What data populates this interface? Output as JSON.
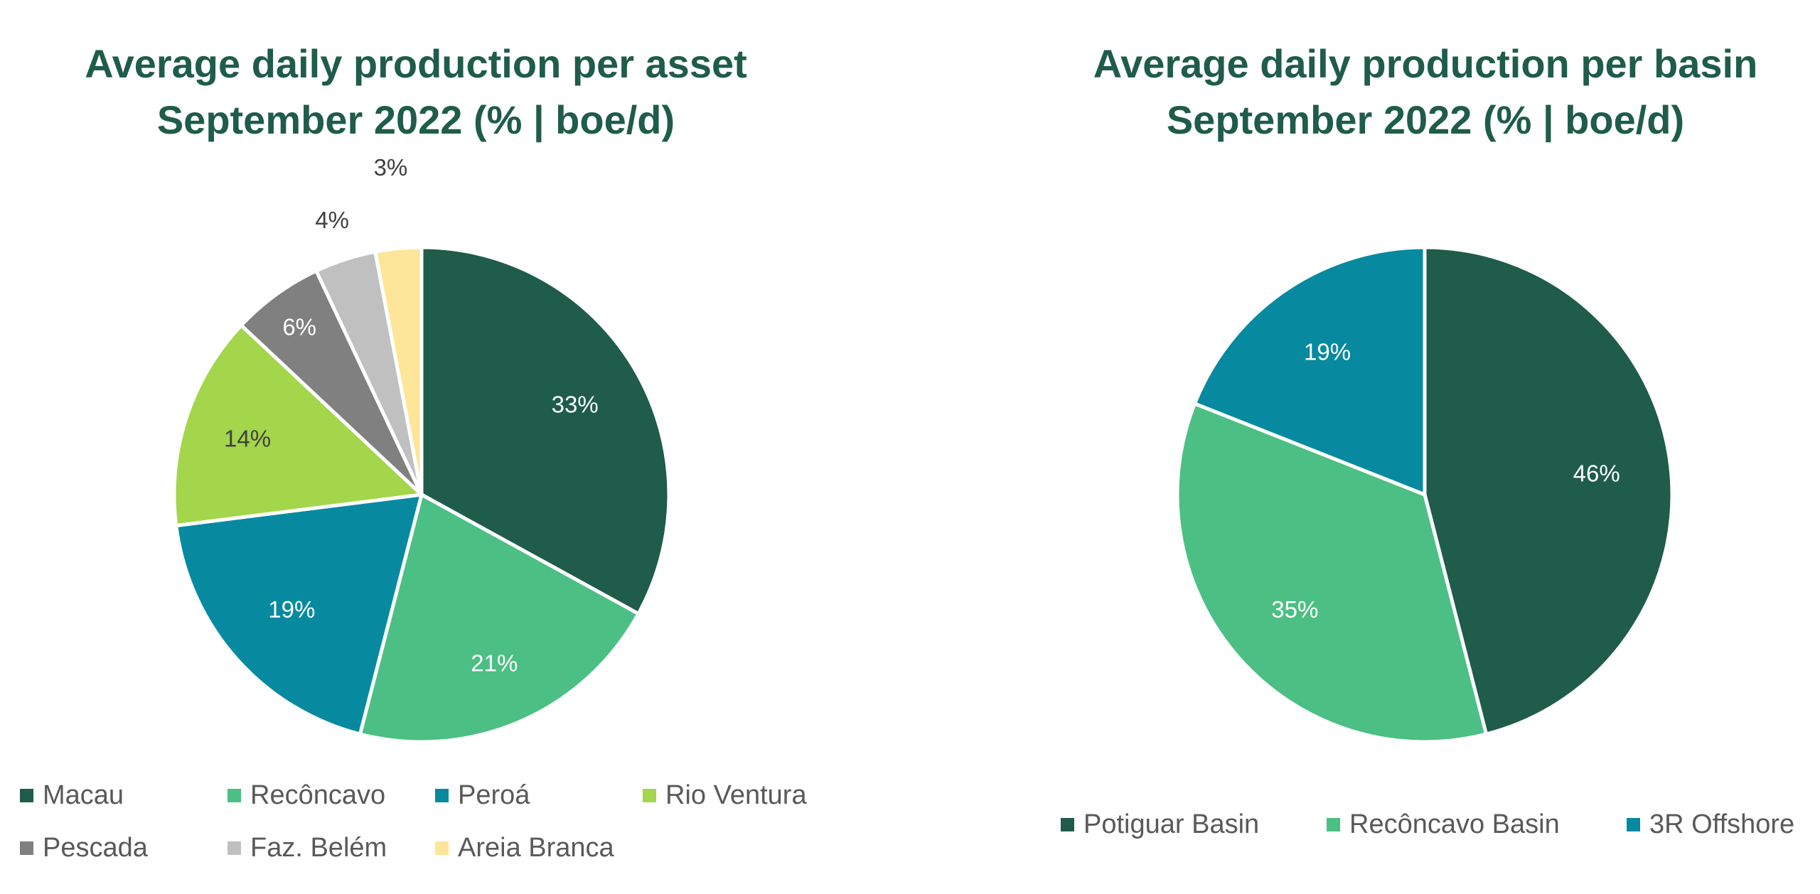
{
  "colors": {
    "title": "#1f5c4a",
    "legend_text": "#595959",
    "slice_border": "#ffffff"
  },
  "chart_data": [
    {
      "type": "pie",
      "title": [
        "Average daily production per asset",
        "September 2022 (% | boe/d)"
      ],
      "start_angle_deg": 0,
      "direction": "clockwise",
      "legend_position": "bottom",
      "slices": [
        {
          "name": "Macau",
          "value": 33,
          "label": "33%",
          "color": "#1f5c4a",
          "label_color": "#ffffff"
        },
        {
          "name": "Recôncavo",
          "value": 21,
          "label": "21%",
          "color": "#4cbf84",
          "label_color": "#ffffff"
        },
        {
          "name": "Peroá",
          "value": 19,
          "label": "19%",
          "color": "#078aa0",
          "label_color": "#ffffff"
        },
        {
          "name": "Rio Ventura",
          "value": 14,
          "label": "14%",
          "color": "#a3d64b",
          "label_color": "#404040"
        },
        {
          "name": "Pescada",
          "value": 6,
          "label": "6%",
          "color": "#808080",
          "label_color": "#ffffff"
        },
        {
          "name": "Faz. Belém",
          "value": 4,
          "label": "4%",
          "color": "#c0c0c0",
          "label_color": "#404040"
        },
        {
          "name": "Areia Branca",
          "value": 3,
          "label": "3%",
          "color": "#fde699",
          "label_color": "#404040"
        }
      ]
    },
    {
      "type": "pie",
      "title": [
        "Average daily production per basin",
        "September 2022 (% | boe/d)"
      ],
      "start_angle_deg": 0,
      "direction": "clockwise",
      "legend_position": "bottom",
      "slices": [
        {
          "name": "Potiguar Basin",
          "value": 46,
          "label": "46%",
          "color": "#1f5c4a",
          "label_color": "#ffffff"
        },
        {
          "name": "Recôncavo Basin",
          "value": 35,
          "label": "35%",
          "color": "#4cbf84",
          "label_color": "#ffffff"
        },
        {
          "name": "3R Offshore",
          "value": 19,
          "label": "19%",
          "color": "#078aa0",
          "label_color": "#ffffff"
        }
      ]
    }
  ]
}
